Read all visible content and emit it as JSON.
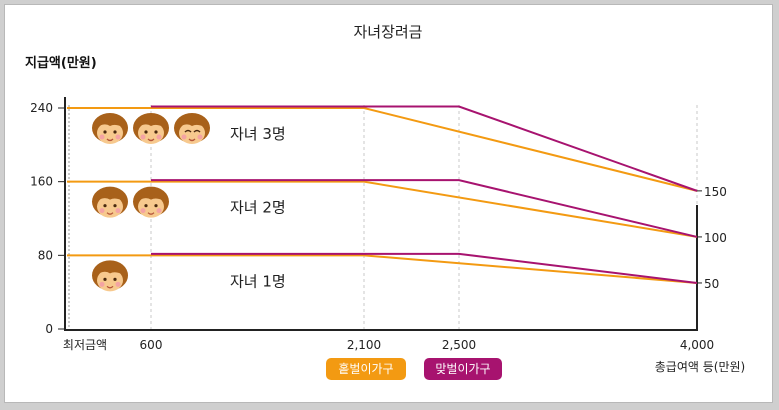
{
  "chart_data": {
    "type": "line",
    "title": "자녀장려금",
    "ylabel": "지급액(만원)",
    "xlabel": "총급여액 등(만원)",
    "x_origin_label": "최저금액",
    "xticks": [
      600,
      2100,
      2500,
      4000
    ],
    "xtick_labels": [
      "600",
      "2,100",
      "2,500",
      "4,000"
    ],
    "yticks": [
      0,
      80,
      160,
      240
    ],
    "ylim": [
      0,
      240
    ],
    "right_tick_labels": [
      "150",
      "100",
      "50"
    ],
    "grid": "dashed vertical at x ticks",
    "groups": [
      {
        "label": "자녀 3명",
        "children": 3,
        "series": [
          {
            "name": "홑벌이가구",
            "x": [
              0,
              2100,
              4000
            ],
            "y": [
              240,
              240,
              150
            ]
          },
          {
            "name": "맞벌이가구",
            "x": [
              600,
              2500,
              4000
            ],
            "y": [
              240,
              240,
              150
            ]
          }
        ]
      },
      {
        "label": "자녀 2명",
        "children": 2,
        "series": [
          {
            "name": "홑벌이가구",
            "x": [
              0,
              2100,
              4000
            ],
            "y": [
              160,
              160,
              100
            ]
          },
          {
            "name": "맞벌이가구",
            "x": [
              600,
              2500,
              4000
            ],
            "y": [
              160,
              160,
              100
            ]
          }
        ]
      },
      {
        "label": "자녀 1명",
        "children": 1,
        "series": [
          {
            "name": "홑벌이가구",
            "x": [
              0,
              2100,
              4000
            ],
            "y": [
              80,
              80,
              50
            ]
          },
          {
            "name": "맞벌이가구",
            "x": [
              600,
              2500,
              4000
            ],
            "y": [
              80,
              80,
              50
            ]
          }
        ]
      }
    ],
    "legend": [
      {
        "name": "홑벌이가구",
        "color": "#f39a12"
      },
      {
        "name": "맞벌이가구",
        "color": "#a7136f"
      }
    ],
    "legend_position": "bottom-center"
  }
}
